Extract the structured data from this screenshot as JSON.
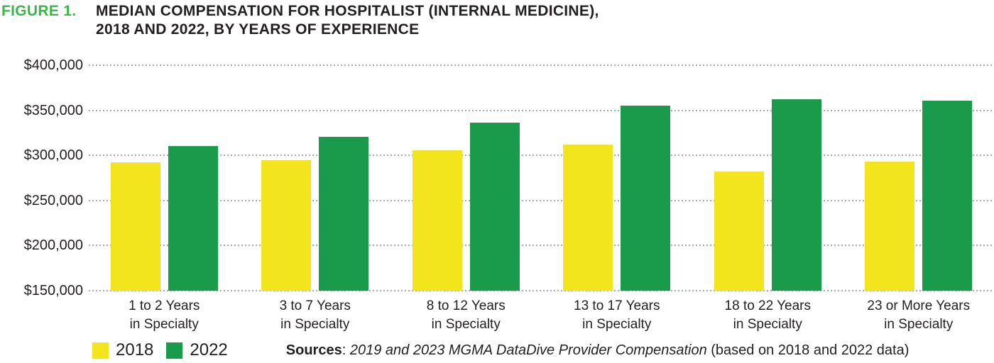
{
  "header": {
    "figure_label": "FIGURE 1.",
    "title_line1": "MEDIAN COMPENSATION FOR HOSPITALIST (INTERNAL MEDICINE),",
    "title_line2": "2018 AND 2022, BY YEARS OF EXPERIENCE"
  },
  "source": {
    "label": "Sources",
    "separator": ": ",
    "citation": "2019 and 2023 MGMA DataDive Provider Compensation",
    "suffix": " (based on 2018 and 2022 data)"
  },
  "colors": {
    "series_2018": "#F3E51D",
    "series_2022": "#1A9B4B",
    "figure_label_green": "#3CB54A",
    "text": "#231F20",
    "gridline": "#A9A9A9"
  },
  "chart_data": {
    "type": "bar",
    "title": "Median compensation for hospitalist (internal medicine), 2018 and 2022, by years of experience",
    "categories": [
      "1 to 2 Years\nin Specialty",
      "3 to 7 Years\nin Specialty",
      "8 to 12 Years\nin Specialty",
      "13 to 17 Years\nin Specialty",
      "18 to 22 Years\nin Specialty",
      "23 or More Years\nin Specialty"
    ],
    "series": [
      {
        "name": "2018",
        "color": "#F3E51D",
        "values": [
          292000,
          295000,
          306000,
          312000,
          282000,
          293000
        ]
      },
      {
        "name": "2022",
        "color": "#1A9B4B",
        "values": [
          310000,
          321000,
          336000,
          355000,
          362000,
          361000
        ]
      }
    ],
    "xlabel": "",
    "ylabel": "",
    "ylim": [
      150000,
      400000
    ],
    "y_ticks": [
      150000,
      200000,
      250000,
      300000,
      350000,
      400000
    ],
    "y_tick_labels": [
      "$150,000",
      "$200,000",
      "$250,000",
      "$300,000",
      "$350,000",
      "$400,000"
    ],
    "grid": "dotted-horizontal",
    "legend_position": "bottom-left",
    "legend": [
      "2018",
      "2022"
    ]
  }
}
